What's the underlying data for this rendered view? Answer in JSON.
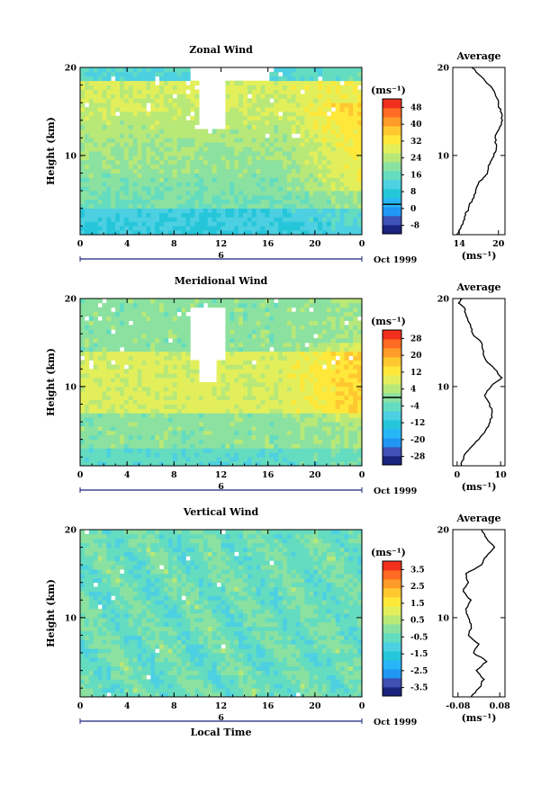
{
  "chart_data": [
    {
      "type": "heatmap",
      "title": "Zonal Wind",
      "ylabel": "Height (km)",
      "xticks": [
        "0",
        "4",
        "8",
        "12",
        "16",
        "20",
        "0"
      ],
      "yticks": [
        "10",
        "20"
      ],
      "xlim": [
        0,
        24
      ],
      "ylim": [
        1,
        20
      ],
      "date_label": "6",
      "date_suffix": "Oct 1999",
      "colorbar": {
        "unit": "(ms⁻¹)",
        "levels": [
          "48",
          "40",
          "32",
          "24",
          "16",
          "8",
          "0",
          "-8"
        ],
        "min": -12,
        "max": 52,
        "zero_line": 2
      },
      "profile": {
        "title": "Average",
        "unit": "(ms⁻¹)",
        "xticks": [
          "14",
          "20"
        ],
        "yticks": [
          "10",
          "20"
        ],
        "xlim": [
          13,
          21
        ],
        "points": [
          [
            13.6,
            1
          ],
          [
            14.3,
            2
          ],
          [
            14.8,
            3
          ],
          [
            15.4,
            4
          ],
          [
            16,
            5
          ],
          [
            16.5,
            6
          ],
          [
            17,
            7
          ],
          [
            17.9,
            7.6
          ],
          [
            18.4,
            8.3
          ],
          [
            18.8,
            9.3
          ],
          [
            19.3,
            10.2
          ],
          [
            19.7,
            11
          ],
          [
            19.5,
            12
          ],
          [
            20.1,
            13
          ],
          [
            20.6,
            14
          ],
          [
            20.3,
            15
          ],
          [
            20,
            16
          ],
          [
            19.5,
            17
          ],
          [
            18.6,
            18
          ],
          [
            17.3,
            19
          ],
          [
            15.9,
            20
          ]
        ]
      }
    },
    {
      "type": "heatmap",
      "title": "Meridional Wind",
      "ylabel": "Height (km)",
      "xticks": [
        "0",
        "4",
        "8",
        "12",
        "16",
        "20",
        "0"
      ],
      "yticks": [
        "10",
        "20"
      ],
      "xlim": [
        0,
        24
      ],
      "ylim": [
        1,
        20
      ],
      "date_label": "6",
      "date_suffix": "Oct 1999",
      "colorbar": {
        "unit": "(ms⁻¹)",
        "levels": [
          "28",
          "20",
          "12",
          "4",
          "-4",
          "-12",
          "-20",
          "-28"
        ],
        "min": -32,
        "max": 32,
        "zero_line": 0
      },
      "profile": {
        "title": "Average",
        "unit": "(ms⁻¹)",
        "xticks": [
          "0",
          "10"
        ],
        "yticks": [
          "10",
          "20"
        ],
        "xlim": [
          -1,
          11
        ],
        "points": [
          [
            1,
            1
          ],
          [
            1.5,
            2
          ],
          [
            3,
            3
          ],
          [
            5,
            4
          ],
          [
            6.5,
            5
          ],
          [
            7.6,
            6
          ],
          [
            8,
            7
          ],
          [
            7.5,
            8
          ],
          [
            6.3,
            9
          ],
          [
            7.8,
            10
          ],
          [
            10.3,
            11
          ],
          [
            8.6,
            12
          ],
          [
            6.6,
            13
          ],
          [
            6.1,
            14
          ],
          [
            5.6,
            15
          ],
          [
            3.6,
            16
          ],
          [
            3.1,
            17
          ],
          [
            2.1,
            18
          ],
          [
            1.6,
            19
          ],
          [
            0.3,
            19.5
          ],
          [
            1.2,
            20
          ]
        ]
      }
    },
    {
      "type": "heatmap",
      "title": "Vertical Wind",
      "ylabel": "Height (km)",
      "xlabel": "Local Time",
      "xticks": [
        "0",
        "4",
        "8",
        "12",
        "16",
        "20",
        "0"
      ],
      "yticks": [
        "10",
        "20"
      ],
      "xlim": [
        0,
        24
      ],
      "ylim": [
        1,
        20
      ],
      "date_label": "6",
      "date_suffix": "Oct 1999",
      "colorbar": {
        "unit": "(ms⁻¹)",
        "levels": [
          "3.5",
          "2.5",
          "1.5",
          "0.5",
          "-0.5",
          "-1.5",
          "-2.5",
          "-3.5"
        ],
        "min": -4,
        "max": 4,
        "zero_line": null
      },
      "profile": {
        "title": "Average",
        "unit": "(ms⁻¹)",
        "xticks": [
          "-0.08",
          "0.08"
        ],
        "yticks": [
          "10",
          "20"
        ],
        "xlim": [
          -0.1,
          0.1
        ],
        "points": [
          [
            -0.03,
            1
          ],
          [
            0,
            2
          ],
          [
            0.02,
            3
          ],
          [
            -0.01,
            4
          ],
          [
            0.03,
            5
          ],
          [
            -0.02,
            6
          ],
          [
            0,
            7
          ],
          [
            -0.04,
            8
          ],
          [
            -0.03,
            9
          ],
          [
            -0.04,
            10
          ],
          [
            -0.05,
            11
          ],
          [
            -0.03,
            12
          ],
          [
            -0.06,
            13
          ],
          [
            -0.04,
            14
          ],
          [
            -0.05,
            15
          ],
          [
            0.01,
            16
          ],
          [
            0.03,
            17
          ],
          [
            0.06,
            18
          ],
          [
            0.03,
            19
          ],
          [
            0.01,
            20
          ]
        ]
      }
    }
  ],
  "colors": {
    "scale": [
      "#1a237e",
      "#3f51b5",
      "#2196f3",
      "#29b6f6",
      "#26c6da",
      "#4dd0e1",
      "#64dcc0",
      "#8be1a0",
      "#b8e878",
      "#e2ef5a",
      "#ffe83a",
      "#ffc830",
      "#ff9b28",
      "#ff6b22",
      "#f0301c"
    ]
  }
}
